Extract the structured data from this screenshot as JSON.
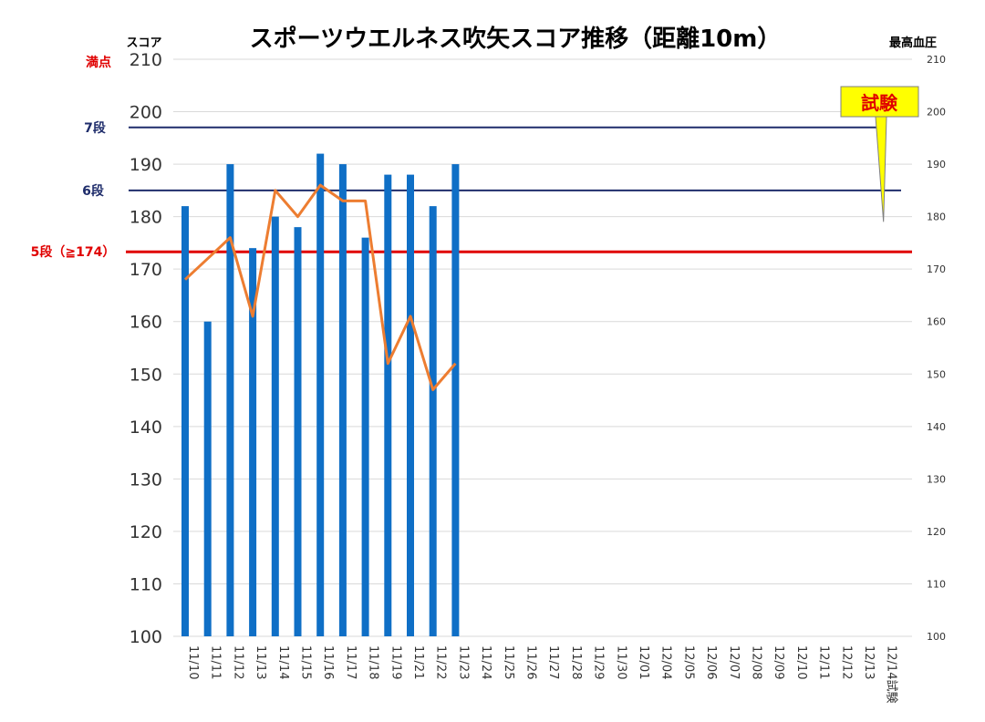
{
  "chart_data": {
    "type": "bar",
    "title": "スポーツウエルネス吹矢スコア推移（距離10m）",
    "ylabel": "スコア",
    "y2label": "最高血圧",
    "ylim": [
      100,
      210
    ],
    "y2lim": [
      100,
      210
    ],
    "yticks": [
      100,
      110,
      120,
      130,
      140,
      150,
      160,
      170,
      180,
      190,
      200,
      210
    ],
    "categories": [
      "11/10",
      "11/11",
      "11/12",
      "11/13",
      "11/14",
      "11/15",
      "11/16",
      "11/17",
      "11/18",
      "11/19",
      "11/21",
      "11/22",
      "11/23",
      "11/24",
      "11/25",
      "11/26",
      "11/27",
      "11/28",
      "11/29",
      "11/30",
      "12/01",
      "12/04",
      "12/05",
      "12/06",
      "12/07",
      "12/08",
      "12/09",
      "12/10",
      "12/11",
      "12/12",
      "12/13",
      "12/14試験"
    ],
    "series": [
      {
        "type": "bar",
        "axis": "left",
        "color": "#0f6fc6",
        "values": [
          182,
          160,
          190,
          174,
          180,
          178,
          192,
          190,
          176,
          188,
          188,
          182,
          190,
          null,
          null,
          null,
          null,
          null,
          null,
          null,
          null,
          null,
          null,
          null,
          null,
          null,
          null,
          null,
          null,
          null,
          null,
          null
        ]
      },
      {
        "type": "line",
        "axis": "right",
        "color": "#ed7d31",
        "values": [
          168,
          172,
          176,
          161,
          185,
          180,
          186,
          183,
          183,
          152,
          161,
          147,
          152,
          null,
          null,
          null,
          null,
          null,
          null,
          null,
          null,
          null,
          null,
          null,
          null,
          null,
          null,
          null,
          null,
          null,
          null,
          null
        ]
      }
    ],
    "reference_lines": [
      {
        "label": "満点",
        "value": 210,
        "color": "#e00000"
      },
      {
        "label": "7段",
        "value": 197,
        "color": "#1f2d6b"
      },
      {
        "label": "6段",
        "value": 185,
        "color": "#1f2d6b"
      },
      {
        "label": "5段（≧174）",
        "value": 173.3,
        "color": "#e00000"
      }
    ],
    "callout": {
      "text": "試験",
      "fill": "#ffff00",
      "text_color": "#e00000",
      "target_category": "12/14試験",
      "target_value": 179
    },
    "grid": true
  }
}
